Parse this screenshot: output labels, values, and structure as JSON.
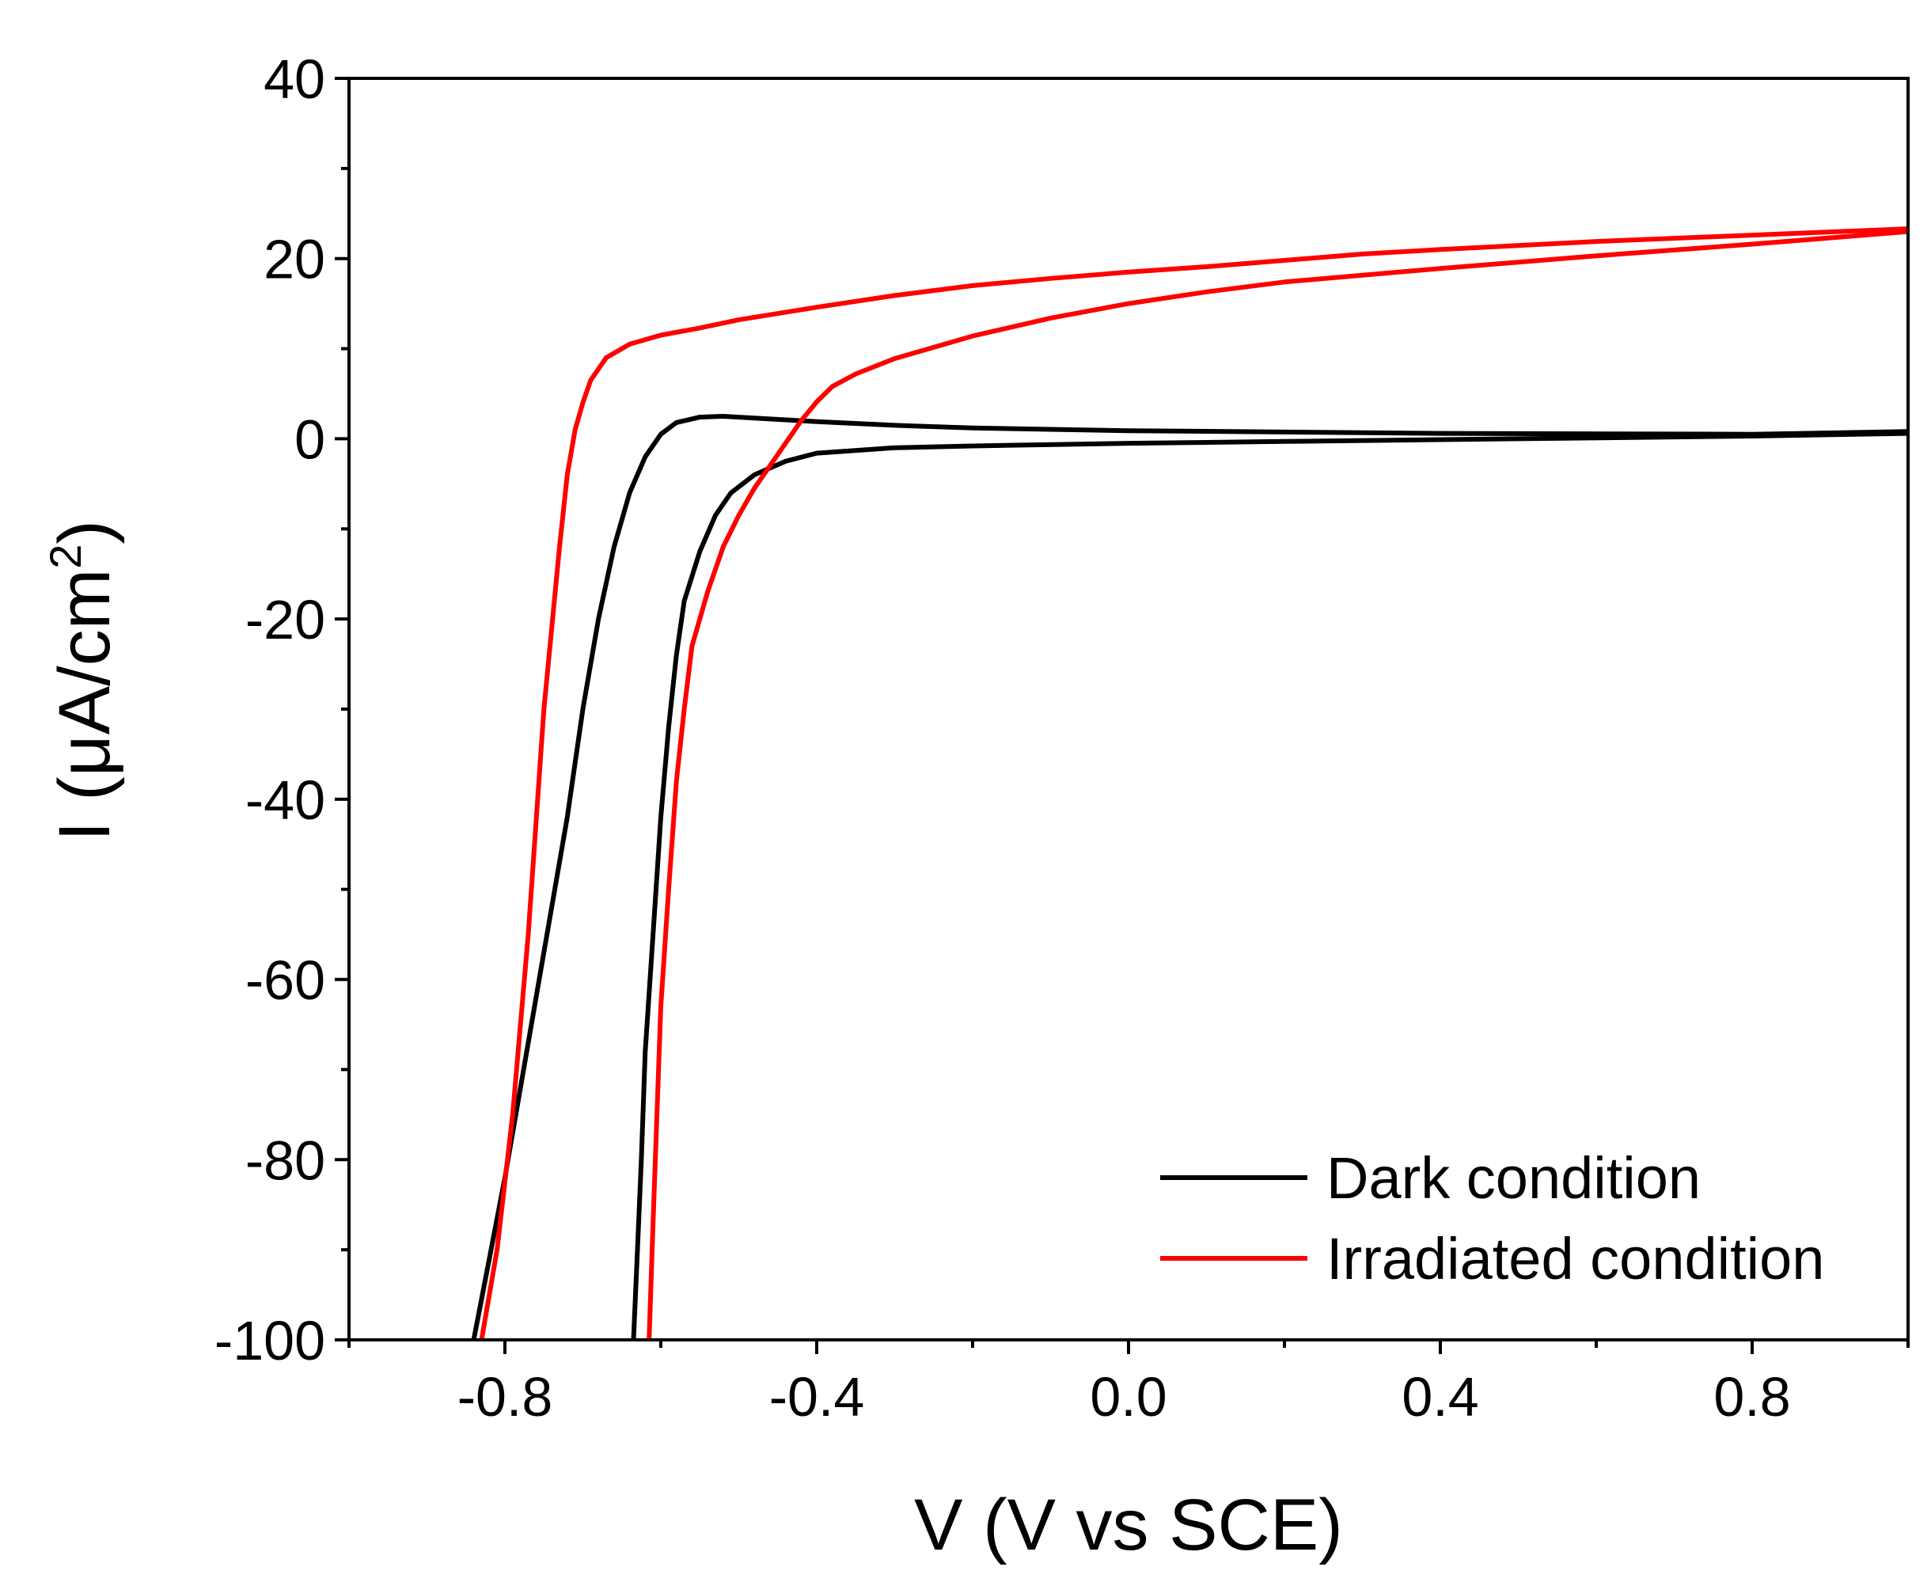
{
  "chart_data": {
    "type": "line",
    "title": "",
    "xlabel": "V (V vs SCE)",
    "ylabel_main": "I (μA/cm",
    "ylabel_sup": "2",
    "ylabel_close": ")",
    "xlim": [
      -1.0,
      1.0
    ],
    "ylim": [
      -100,
      40
    ],
    "x_ticks": [
      -0.8,
      -0.4,
      0.0,
      0.4,
      0.8
    ],
    "x_tick_labels": [
      "-0.8",
      "-0.4",
      "0.0",
      "0.4",
      "0.8"
    ],
    "y_ticks": [
      -100,
      -80,
      -60,
      -40,
      -20,
      0,
      20,
      40
    ],
    "y_tick_labels": [
      "-100",
      "-80",
      "-60",
      "-40",
      "-20",
      "0",
      "20",
      "40"
    ],
    "grid": false,
    "legend_position": "bottom-right",
    "series": [
      {
        "name": "Dark condition",
        "color": "#000000",
        "segments": [
          [
            [
              -0.84,
              -100
            ],
            [
              -0.8,
              -82
            ],
            [
              -0.76,
              -62
            ],
            [
              -0.72,
              -42
            ],
            [
              -0.7,
              -30
            ],
            [
              -0.68,
              -20
            ],
            [
              -0.66,
              -12
            ],
            [
              -0.64,
              -6
            ],
            [
              -0.62,
              -2
            ],
            [
              -0.6,
              0.5
            ],
            [
              -0.58,
              1.8
            ],
            [
              -0.55,
              2.4
            ],
            [
              -0.52,
              2.5
            ],
            [
              -0.48,
              2.3
            ],
            [
              -0.4,
              1.9
            ],
            [
              -0.3,
              1.5
            ],
            [
              -0.2,
              1.2
            ],
            [
              0.0,
              0.9
            ],
            [
              0.4,
              0.6
            ],
            [
              0.8,
              0.5
            ],
            [
              1.0,
              0.8
            ]
          ],
          [
            [
              1.0,
              0.6
            ],
            [
              0.8,
              0.3
            ],
            [
              0.5,
              0.0
            ],
            [
              0.2,
              -0.3
            ],
            [
              0.0,
              -0.5
            ],
            [
              -0.2,
              -0.8
            ],
            [
              -0.3,
              -1.0
            ],
            [
              -0.4,
              -1.6
            ],
            [
              -0.44,
              -2.5
            ],
            [
              -0.48,
              -4.0
            ],
            [
              -0.51,
              -6.0
            ],
            [
              -0.53,
              -8.5
            ],
            [
              -0.55,
              -12.5
            ],
            [
              -0.57,
              -18
            ],
            [
              -0.58,
              -24
            ],
            [
              -0.59,
              -32
            ],
            [
              -0.6,
              -42
            ],
            [
              -0.61,
              -55
            ],
            [
              -0.62,
              -68
            ],
            [
              -0.625,
              -80
            ],
            [
              -0.63,
              -90
            ],
            [
              -0.635,
              -100
            ]
          ]
        ]
      },
      {
        "name": "Irradiated condition",
        "color": "#ff0000",
        "segments": [
          [
            [
              -0.83,
              -100
            ],
            [
              -0.81,
              -90
            ],
            [
              -0.79,
              -75
            ],
            [
              -0.77,
              -55
            ],
            [
              -0.75,
              -30
            ],
            [
              -0.73,
              -12
            ],
            [
              -0.72,
              -4
            ],
            [
              -0.71,
              1
            ],
            [
              -0.7,
              4
            ],
            [
              -0.69,
              6.5
            ],
            [
              -0.67,
              9
            ],
            [
              -0.64,
              10.5
            ],
            [
              -0.6,
              11.5
            ],
            [
              -0.55,
              12.3
            ],
            [
              -0.5,
              13.2
            ],
            [
              -0.4,
              14.6
            ],
            [
              -0.3,
              15.9
            ],
            [
              -0.2,
              17.0
            ],
            [
              -0.1,
              17.8
            ],
            [
              0.0,
              18.5
            ],
            [
              0.1,
              19.1
            ],
            [
              0.2,
              19.8
            ],
            [
              0.3,
              20.5
            ],
            [
              0.4,
              21.0
            ],
            [
              0.6,
              21.9
            ],
            [
              0.8,
              22.6
            ],
            [
              1.0,
              23.3
            ]
          ],
          [
            [
              1.0,
              23.0
            ],
            [
              0.8,
              21.6
            ],
            [
              0.6,
              20.3
            ],
            [
              0.4,
              18.9
            ],
            [
              0.2,
              17.4
            ],
            [
              0.1,
              16.3
            ],
            [
              0.0,
              15.0
            ],
            [
              -0.1,
              13.4
            ],
            [
              -0.2,
              11.4
            ],
            [
              -0.3,
              8.9
            ],
            [
              -0.35,
              7.2
            ],
            [
              -0.38,
              5.8
            ],
            [
              -0.4,
              4.1
            ],
            [
              -0.42,
              2.0
            ],
            [
              -0.44,
              -0.5
            ],
            [
              -0.46,
              -3.0
            ],
            [
              -0.48,
              -5.5
            ],
            [
              -0.5,
              -8.5
            ],
            [
              -0.52,
              -12
            ],
            [
              -0.54,
              -17
            ],
            [
              -0.56,
              -23
            ],
            [
              -0.57,
              -30
            ],
            [
              -0.58,
              -38
            ],
            [
              -0.59,
              -50
            ],
            [
              -0.6,
              -63
            ],
            [
              -0.605,
              -75
            ],
            [
              -0.61,
              -87
            ],
            [
              -0.615,
              -100
            ]
          ]
        ]
      }
    ]
  }
}
